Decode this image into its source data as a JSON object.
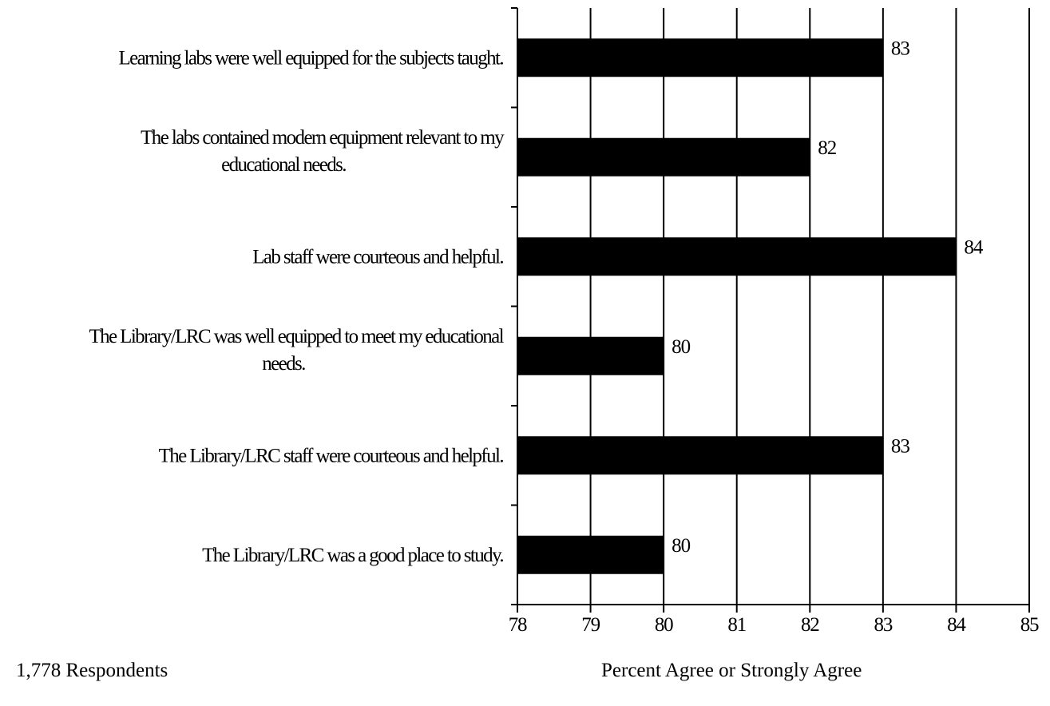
{
  "chart_data": {
    "type": "bar",
    "orientation": "horizontal",
    "categories": [
      [
        "Learning labs were well equipped for the subjects taught."
      ],
      [
        "The labs contained modern equipment relevant to my",
        "educational needs."
      ],
      [
        "Lab staff were courteous and helpful."
      ],
      [
        "The Library/LRC was well equipped to meet my educational",
        "needs."
      ],
      [
        "The Library/LRC staff were courteous and helpful."
      ],
      [
        "The Library/LRC was a good place to study."
      ]
    ],
    "values": [
      83,
      82,
      84,
      80,
      83,
      80
    ],
    "value_labels": [
      "83",
      "82",
      "84",
      "80",
      "83",
      "80"
    ],
    "xlim": [
      78,
      85
    ],
    "xticks": [
      78,
      79,
      80,
      81,
      82,
      83,
      84,
      85
    ],
    "xtick_labels": [
      "78",
      "79",
      "80",
      "81",
      "82",
      "83",
      "84",
      "85"
    ],
    "xlabel": "Percent Agree or Strongly Agree",
    "grid": "vertical",
    "bar_color": "#000000",
    "legend": null
  },
  "footer": {
    "respondents": "1,778 Respondents"
  }
}
